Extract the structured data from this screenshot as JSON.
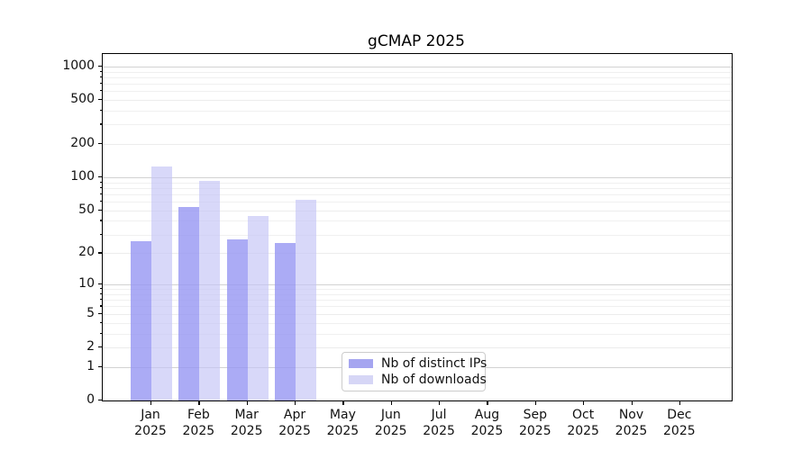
{
  "chart_data": {
    "type": "bar",
    "title": "gCMAP 2025",
    "x_tick_months": [
      "Jan",
      "Feb",
      "Mar",
      "Apr",
      "May",
      "Jun",
      "Jul",
      "Aug",
      "Sep",
      "Oct",
      "Nov",
      "Dec"
    ],
    "x_tick_year": "2025",
    "yaxis": {
      "scale": "log1p",
      "ticks": [
        0,
        1,
        2,
        5,
        10,
        20,
        50,
        100,
        200,
        500,
        1000
      ],
      "decade_ticks": [
        1,
        10,
        100,
        1000
      ],
      "minor_ticks": [
        3,
        4,
        6,
        7,
        8,
        9,
        30,
        40,
        60,
        70,
        80,
        90,
        300,
        400,
        600,
        700,
        800,
        900
      ],
      "ylim": [
        0,
        1290
      ]
    },
    "grid": "both",
    "legend_position": "lower center-left inside plot",
    "series": [
      {
        "name": "Nb of distinct IPs",
        "color": "#a5a5f0",
        "bar_rgba": "rgba(150,150,243,0.8)",
        "values": [
          26,
          54,
          27,
          25,
          null,
          null,
          null,
          null,
          null,
          null,
          null,
          null
        ]
      },
      {
        "name": "Nb of downloads",
        "color": "#d6d6f6",
        "bar_rgba": "rgba(197,197,246,0.67)",
        "values": [
          125,
          92,
          44,
          62,
          null,
          null,
          null,
          null,
          null,
          null,
          null,
          null
        ]
      }
    ]
  }
}
